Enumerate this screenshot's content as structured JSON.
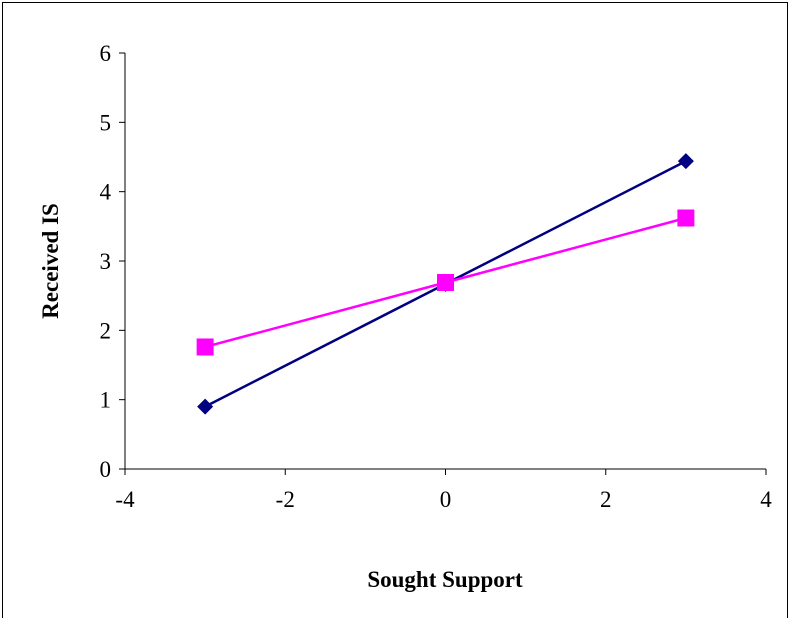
{
  "chart_data": {
    "type": "line",
    "title": "",
    "xlabel": "Sought Support",
    "ylabel": "Received IS",
    "xlim": [
      -4,
      4
    ],
    "ylim": [
      0,
      6
    ],
    "xticks": [
      -4,
      -2,
      0,
      2,
      4
    ],
    "yticks": [
      0,
      1,
      2,
      3,
      4,
      5,
      6
    ],
    "x_tick_labels": [
      "-4",
      "-2",
      "0",
      "2",
      "4"
    ],
    "y_tick_labels": [
      "0",
      "1",
      "2",
      "3",
      "4",
      "5",
      "6"
    ],
    "grid": false,
    "legend": "none",
    "series": [
      {
        "color": "#000080",
        "marker": "diamond",
        "x": [
          -3,
          0,
          3
        ],
        "y": [
          0.9,
          2.67,
          4.44
        ]
      },
      {
        "color": "#FF00FF",
        "marker": "square",
        "x": [
          -3,
          0,
          3
        ],
        "y": [
          1.76,
          2.69,
          3.62
        ]
      }
    ]
  }
}
